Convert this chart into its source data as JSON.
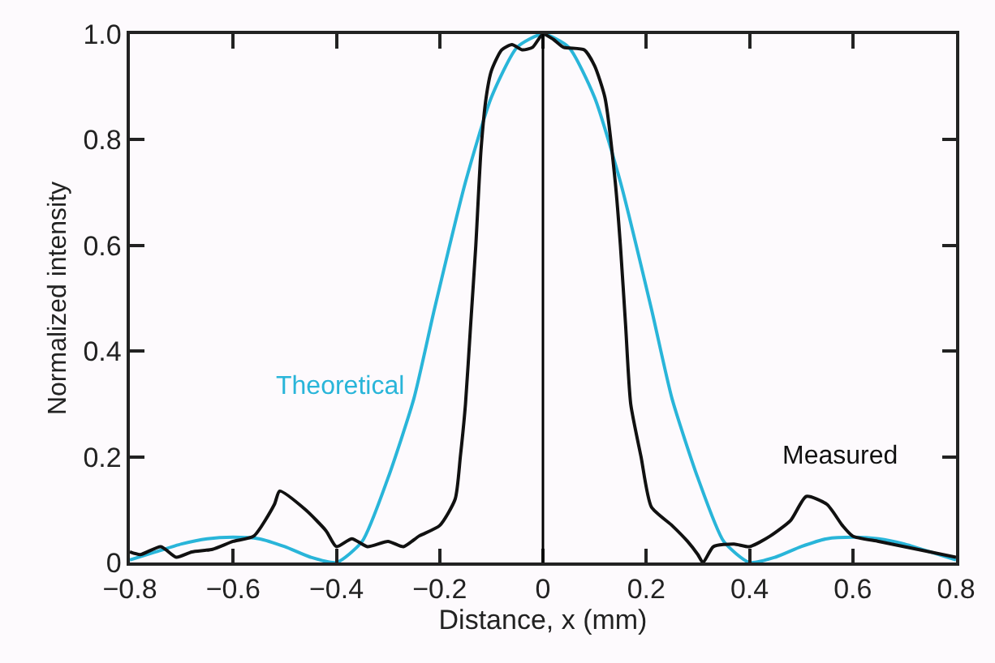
{
  "chart_data": {
    "type": "line",
    "xlabel": "Distance, x (mm)",
    "ylabel": "Normalized intensity",
    "xlim": [
      -0.8,
      0.8
    ],
    "ylim": [
      0,
      1.0
    ],
    "xticks": [
      {
        "value": -0.8,
        "label": "−0.8"
      },
      {
        "value": -0.6,
        "label": "−0.6"
      },
      {
        "value": -0.4,
        "label": "−0.4"
      },
      {
        "value": -0.2,
        "label": "−0.2"
      },
      0,
      0.2,
      0.4,
      0.6,
      0.8
    ],
    "yticks": [
      0,
      0.2,
      0.4,
      0.6,
      0.8,
      {
        "value": 1.0,
        "label": "1.0"
      }
    ],
    "legend": false,
    "marker": "none",
    "line_style": "solid",
    "ref_lines": [
      {
        "axis": "x",
        "value": 0,
        "color": "#000000"
      }
    ],
    "series": [
      {
        "name": "Theoretical",
        "color": "#29b5d9",
        "x": [
          -0.8,
          -0.75,
          -0.7,
          -0.65,
          -0.6,
          -0.55,
          -0.5,
          -0.45,
          -0.4,
          -0.35,
          -0.3,
          -0.25,
          -0.21,
          -0.15,
          -0.1,
          -0.05,
          0,
          0.05,
          0.1,
          0.15,
          0.21,
          0.25,
          0.3,
          0.35,
          0.4,
          0.45,
          0.5,
          0.55,
          0.6,
          0.65,
          0.7,
          0.75,
          0.8
        ],
        "values": [
          0.005,
          0.02,
          0.035,
          0.045,
          0.048,
          0.045,
          0.03,
          0.01,
          0,
          0.04,
          0.16,
          0.31,
          0.48,
          0.72,
          0.88,
          0.975,
          1.0,
          0.975,
          0.88,
          0.72,
          0.48,
          0.31,
          0.16,
          0.04,
          0,
          0.01,
          0.03,
          0.045,
          0.048,
          0.045,
          0.035,
          0.02,
          0.005
        ]
      },
      {
        "name": "Measured",
        "color": "#111111",
        "x": [
          -0.8,
          -0.78,
          -0.74,
          -0.71,
          -0.68,
          -0.64,
          -0.6,
          -0.56,
          -0.52,
          -0.51,
          -0.46,
          -0.42,
          -0.4,
          -0.37,
          -0.34,
          -0.3,
          -0.27,
          -0.24,
          -0.2,
          -0.17,
          -0.16,
          -0.15,
          -0.14,
          -0.13,
          -0.12,
          -0.11,
          -0.1,
          -0.08,
          -0.06,
          -0.04,
          -0.02,
          0,
          0.02,
          0.04,
          0.08,
          0.1,
          0.12,
          0.14,
          0.15,
          0.16,
          0.17,
          0.19,
          0.21,
          0.25,
          0.28,
          0.3,
          0.31,
          0.33,
          0.37,
          0.4,
          0.44,
          0.48,
          0.51,
          0.55,
          0.58,
          0.6,
          0.65,
          0.7,
          0.75,
          0.8
        ],
        "values": [
          0.02,
          0.015,
          0.03,
          0.01,
          0.02,
          0.025,
          0.04,
          0.05,
          0.11,
          0.135,
          0.1,
          0.06,
          0.03,
          0.045,
          0.03,
          0.04,
          0.03,
          0.05,
          0.07,
          0.12,
          0.2,
          0.3,
          0.45,
          0.6,
          0.78,
          0.88,
          0.93,
          0.97,
          0.98,
          0.97,
          0.975,
          1.0,
          0.99,
          0.975,
          0.97,
          0.94,
          0.88,
          0.72,
          0.6,
          0.45,
          0.3,
          0.2,
          0.105,
          0.07,
          0.04,
          0.015,
          0.0,
          0.03,
          0.035,
          0.03,
          0.05,
          0.08,
          0.125,
          0.11,
          0.07,
          0.05,
          0.04,
          0.03,
          0.02,
          0.01
        ]
      }
    ]
  }
}
